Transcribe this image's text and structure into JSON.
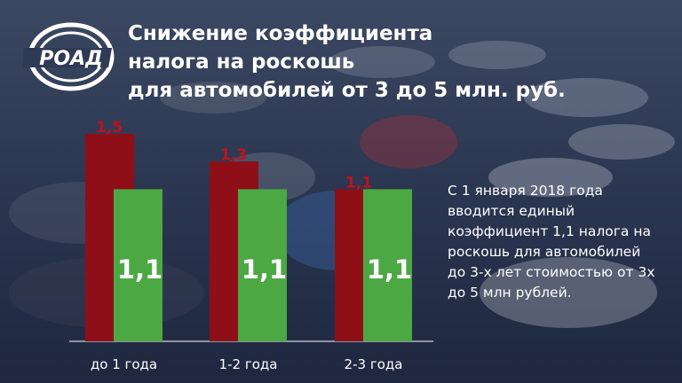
{
  "brand": {
    "logo_text": "РОАД"
  },
  "header": {
    "title_lines": [
      "Снижение коэффициента",
      "налога на роскошь",
      "для автомобилей от 3 до 5 млн. руб."
    ]
  },
  "note": "С 1 января 2018 года вводится единый коэффициент 1,1 налога на роскошь для автомобилей до 3-х лет стоимостью от 3х до 5 млн рублей.",
  "colors": {
    "background": "#2a3550",
    "bar_old": "#8f0f18",
    "bar_new": "#4ca843",
    "label_old": "#c01020",
    "text": "#ffffff"
  },
  "chart_data": {
    "type": "bar",
    "categories": [
      "до 1 года",
      "1-2 года",
      "2-3 года"
    ],
    "series": [
      {
        "values": [
          1.5,
          1.3,
          1.1
        ],
        "labels": [
          "1,5",
          "1,3",
          "1,1"
        ]
      },
      {
        "values": [
          1.1,
          1.1,
          1.1
        ],
        "labels": [
          "1,1",
          "1,1",
          "1,1"
        ]
      }
    ],
    "ylim": [
      0,
      1.5
    ],
    "grid": false,
    "legend": "none"
  }
}
